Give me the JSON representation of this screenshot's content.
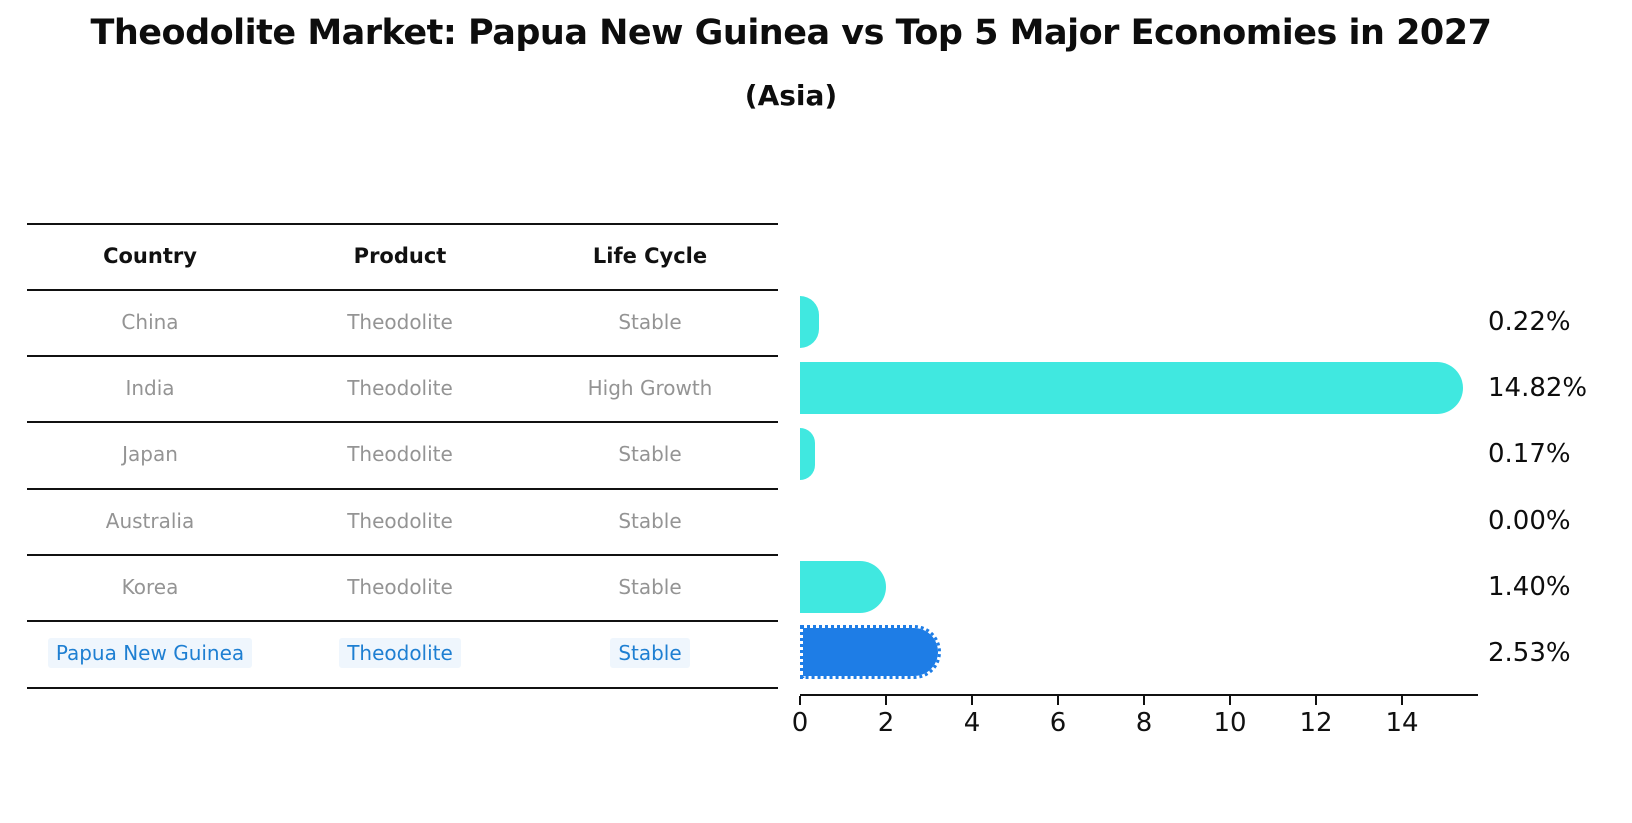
{
  "title": "Theodolite Market: Papua New Guinea vs Top 5 Major Economies in 2027",
  "subtitle": "(Asia)",
  "table": {
    "headers": [
      "Country",
      "Product",
      "Life Cycle"
    ],
    "rows": [
      {
        "country": "China",
        "product": "Theodolite",
        "life_cycle": "Stable",
        "highlighted": false
      },
      {
        "country": "India",
        "product": "Theodolite",
        "life_cycle": "High Growth",
        "highlighted": false
      },
      {
        "country": "Japan",
        "product": "Theodolite",
        "life_cycle": "Stable",
        "highlighted": false
      },
      {
        "country": "Australia",
        "product": "Theodolite",
        "life_cycle": "Stable",
        "highlighted": false
      },
      {
        "country": "Korea",
        "product": "Theodolite",
        "life_cycle": "Stable",
        "highlighted": false
      },
      {
        "country": "Papua New Guinea",
        "product": "Theodolite",
        "life_cycle": "Stable",
        "highlighted": true
      }
    ]
  },
  "chart_data": {
    "type": "bar",
    "orientation": "horizontal",
    "title": "Theodolite Market: Papua New Guinea vs Top 5 Major Economies in 2027 (Asia)",
    "categories": [
      "China",
      "India",
      "Japan",
      "Australia",
      "Korea",
      "Papua New Guinea"
    ],
    "values": [
      0.22,
      14.82,
      0.17,
      0.0,
      1.4,
      2.53
    ],
    "value_labels": [
      "0.22%",
      "14.82%",
      "0.17%",
      "0.00%",
      "1.40%",
      "2.53%"
    ],
    "x_ticks": [
      "0",
      "2",
      "4",
      "6",
      "8",
      "10",
      "12",
      "14"
    ],
    "xlim": [
      0,
      15.7
    ],
    "highlight_index": 5,
    "grid": false,
    "legend": false,
    "colors": {
      "default_bar": "#40e8e0",
      "highlight_bar": "#1e7de6",
      "highlight_text": "#1e7fd2",
      "table_text": "#949494",
      "axis_text": "#111111"
    }
  }
}
